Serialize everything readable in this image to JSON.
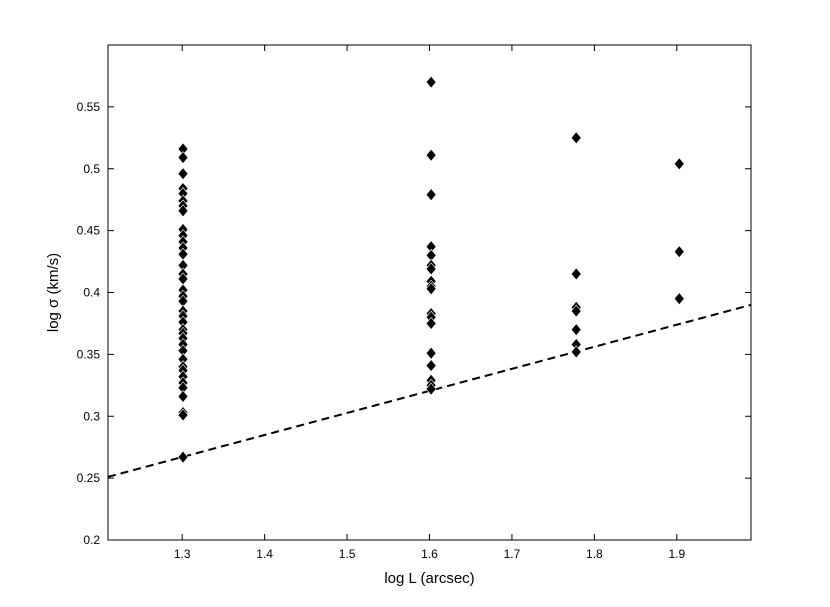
{
  "chart_data": {
    "type": "scatter",
    "title": "",
    "xlabel": "log L (arcsec)",
    "ylabel": "log σ (km/s)",
    "xlim": [
      1.21,
      1.99
    ],
    "ylim": [
      0.2,
      0.6
    ],
    "xticks": [
      1.3,
      1.4,
      1.5,
      1.6,
      1.7,
      1.8,
      1.9
    ],
    "yticks": [
      0.2,
      0.25,
      0.3,
      0.35,
      0.4,
      0.45,
      0.5,
      0.55
    ],
    "xtick_labels": [
      "1.3",
      "1.4",
      "1.5",
      "1.6",
      "1.7",
      "1.8",
      "1.9"
    ],
    "ytick_labels": [
      "0.2",
      "0.25",
      "0.3",
      "0.35",
      "0.4",
      "0.45",
      "0.5",
      "0.55"
    ],
    "grid": false,
    "marker": "diamond",
    "marker_color": "#000000",
    "points": [
      {
        "x": 1.301,
        "y": 0.516
      },
      {
        "x": 1.301,
        "y": 0.509
      },
      {
        "x": 1.301,
        "y": 0.496
      },
      {
        "x": 1.301,
        "y": 0.484
      },
      {
        "x": 1.301,
        "y": 0.48
      },
      {
        "x": 1.301,
        "y": 0.474
      },
      {
        "x": 1.301,
        "y": 0.47
      },
      {
        "x": 1.301,
        "y": 0.466
      },
      {
        "x": 1.301,
        "y": 0.451
      },
      {
        "x": 1.301,
        "y": 0.446
      },
      {
        "x": 1.301,
        "y": 0.441
      },
      {
        "x": 1.301,
        "y": 0.436
      },
      {
        "x": 1.301,
        "y": 0.431
      },
      {
        "x": 1.301,
        "y": 0.422
      },
      {
        "x": 1.301,
        "y": 0.415
      },
      {
        "x": 1.301,
        "y": 0.411
      },
      {
        "x": 1.301,
        "y": 0.402
      },
      {
        "x": 1.301,
        "y": 0.397
      },
      {
        "x": 1.301,
        "y": 0.393
      },
      {
        "x": 1.301,
        "y": 0.385
      },
      {
        "x": 1.301,
        "y": 0.381
      },
      {
        "x": 1.301,
        "y": 0.376
      },
      {
        "x": 1.301,
        "y": 0.37
      },
      {
        "x": 1.301,
        "y": 0.367
      },
      {
        "x": 1.301,
        "y": 0.363
      },
      {
        "x": 1.301,
        "y": 0.358
      },
      {
        "x": 1.301,
        "y": 0.353
      },
      {
        "x": 1.301,
        "y": 0.346
      },
      {
        "x": 1.301,
        "y": 0.34
      },
      {
        "x": 1.301,
        "y": 0.337
      },
      {
        "x": 1.301,
        "y": 0.332
      },
      {
        "x": 1.301,
        "y": 0.327
      },
      {
        "x": 1.301,
        "y": 0.323
      },
      {
        "x": 1.301,
        "y": 0.316
      },
      {
        "x": 1.301,
        "y": 0.303
      },
      {
        "x": 1.301,
        "y": 0.301
      },
      {
        "x": 1.301,
        "y": 0.267
      },
      {
        "x": 1.602,
        "y": 0.57
      },
      {
        "x": 1.602,
        "y": 0.511
      },
      {
        "x": 1.602,
        "y": 0.479
      },
      {
        "x": 1.602,
        "y": 0.437
      },
      {
        "x": 1.602,
        "y": 0.43
      },
      {
        "x": 1.602,
        "y": 0.422
      },
      {
        "x": 1.602,
        "y": 0.419
      },
      {
        "x": 1.602,
        "y": 0.409
      },
      {
        "x": 1.602,
        "y": 0.405
      },
      {
        "x": 1.602,
        "y": 0.403
      },
      {
        "x": 1.602,
        "y": 0.383
      },
      {
        "x": 1.602,
        "y": 0.38
      },
      {
        "x": 1.602,
        "y": 0.375
      },
      {
        "x": 1.602,
        "y": 0.351
      },
      {
        "x": 1.602,
        "y": 0.341
      },
      {
        "x": 1.602,
        "y": 0.329
      },
      {
        "x": 1.602,
        "y": 0.325
      },
      {
        "x": 1.602,
        "y": 0.322
      },
      {
        "x": 1.778,
        "y": 0.525
      },
      {
        "x": 1.778,
        "y": 0.415
      },
      {
        "x": 1.778,
        "y": 0.388
      },
      {
        "x": 1.778,
        "y": 0.385
      },
      {
        "x": 1.778,
        "y": 0.37
      },
      {
        "x": 1.778,
        "y": 0.358
      },
      {
        "x": 1.778,
        "y": 0.352
      },
      {
        "x": 1.903,
        "y": 0.504
      },
      {
        "x": 1.903,
        "y": 0.433
      },
      {
        "x": 1.903,
        "y": 0.395
      }
    ],
    "fit_line": {
      "style": "dashed",
      "x": [
        1.21,
        1.99
      ],
      "y": [
        0.251,
        0.39
      ]
    }
  }
}
